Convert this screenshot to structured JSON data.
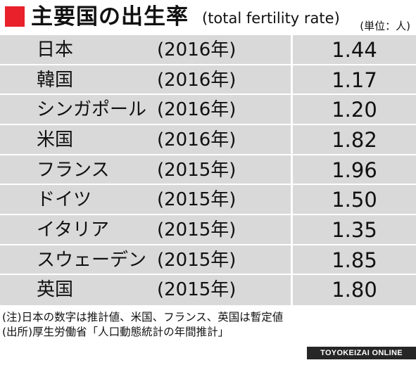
{
  "header": {
    "title": "主要国の出生率",
    "subtitle": "(total fertility rate)",
    "unit": "(単位：人)",
    "accent_color": "#e8212a"
  },
  "chart_data": {
    "type": "table",
    "title": "主要国の出生率",
    "subtitle": "(total fertility rate)",
    "unit": "(単位：人)",
    "rows": [
      {
        "country": "日本",
        "year": "(2016年)",
        "value": "1.44"
      },
      {
        "country": "韓国",
        "year": "(2016年)",
        "value": "1.17"
      },
      {
        "country": "シンガポール",
        "year": "(2016年)",
        "value": "1.20"
      },
      {
        "country": "米国",
        "year": "(2016年)",
        "value": "1.82"
      },
      {
        "country": "フランス",
        "year": "(2015年)",
        "value": "1.96"
      },
      {
        "country": "ドイツ",
        "year": "(2015年)",
        "value": "1.50"
      },
      {
        "country": "イタリア",
        "year": "(2015年)",
        "value": "1.35"
      },
      {
        "country": "スウェーデン",
        "year": "(2015年)",
        "value": "1.85"
      },
      {
        "country": "英国",
        "year": "(2015年)",
        "value": "1.80"
      }
    ]
  },
  "notes": {
    "note": "(注)日本の数字は推計値、米国、フランス、英国は暫定値",
    "source": "(出所)厚生労働省「人口動態統計の年間推計」"
  },
  "footer": {
    "brand": "TOYOKEIZAI ONLINE"
  }
}
